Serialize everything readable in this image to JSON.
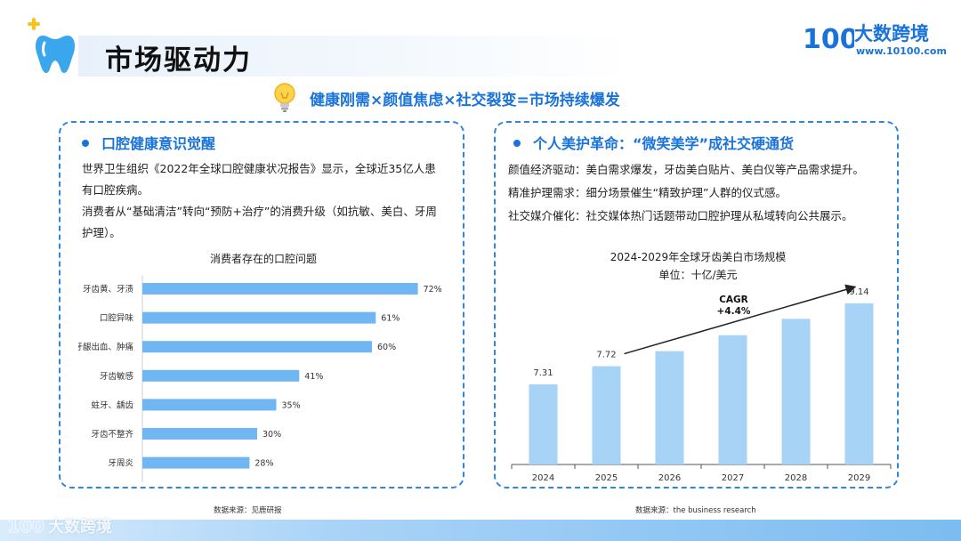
{
  "header": {
    "title": "市场驱动力",
    "logo_name": "大数跨境",
    "logo_url": "www.10100.com",
    "logo_mark": "100"
  },
  "headline": "健康刚需×颜值焦虑×社交裂变=市场持续爆发",
  "left_panel": {
    "heading": "口腔健康意识觉醒",
    "paragraphs": [
      "世界卫生组织《2022年全球口腔健康状况报告》显示，全球近35亿人患有口腔疾病。",
      "消费者从“基础清洁”转向“预防+治疗”的消费升级（如抗敏、美白、牙周护理）。"
    ],
    "chart_title": "消费者存在的口腔问题",
    "source": "数据来源：见鹿研报"
  },
  "right_panel": {
    "heading": "个人美护革命：“微笑美学”成社交硬通货",
    "paragraphs": [
      "颜值经济驱动：美白需求爆发，牙齿美白贴片、美白仪等产品需求提升。",
      "精准护理需求：细分场景催生“精致护理”人群的仪式感。",
      "社交媒介催化：社交媒体热门话题带动口腔护理从私域转向公共展示。"
    ],
    "chart_title": "2024-2029年全球牙齿美白市场规模",
    "chart_subtitle": "单位：十亿/美元",
    "source": "数据来源：the business research"
  },
  "watermark": "大数跨境",
  "chart_data": [
    {
      "type": "bar",
      "orientation": "horizontal",
      "title": "消费者存在的口腔问题",
      "categories": [
        "牙齿黄、牙渍",
        "口腔异味",
        "牙龈出血、肿痛",
        "牙齿敏感",
        "蛀牙、龋齿",
        "牙齿不整齐",
        "牙周炎"
      ],
      "values": [
        72,
        61,
        60,
        41,
        35,
        30,
        28
      ],
      "value_labels": [
        "72%",
        "61%",
        "60%",
        "41%",
        "35%",
        "30%",
        "28%"
      ],
      "unit": "%",
      "xlim": [
        0,
        80
      ],
      "color": "#6fb6f2",
      "grid": false,
      "legend": "none"
    },
    {
      "type": "bar",
      "title": "2024-2029年全球牙齿美白市场规模",
      "subtitle": "单位：十亿/美元",
      "categories": [
        "2024",
        "2025",
        "2026",
        "2027",
        "2028",
        "2029"
      ],
      "values": [
        7.31,
        7.72,
        8.06,
        8.42,
        8.79,
        9.14
      ],
      "value_labels": [
        "7.31",
        "7.72",
        "",
        "",
        "",
        "9.14"
      ],
      "ylim": [
        5.5,
        9.6
      ],
      "annotation": "CAGR\n+4.4%",
      "color": "#a7d3f6",
      "grid": false,
      "legend": "none"
    }
  ]
}
